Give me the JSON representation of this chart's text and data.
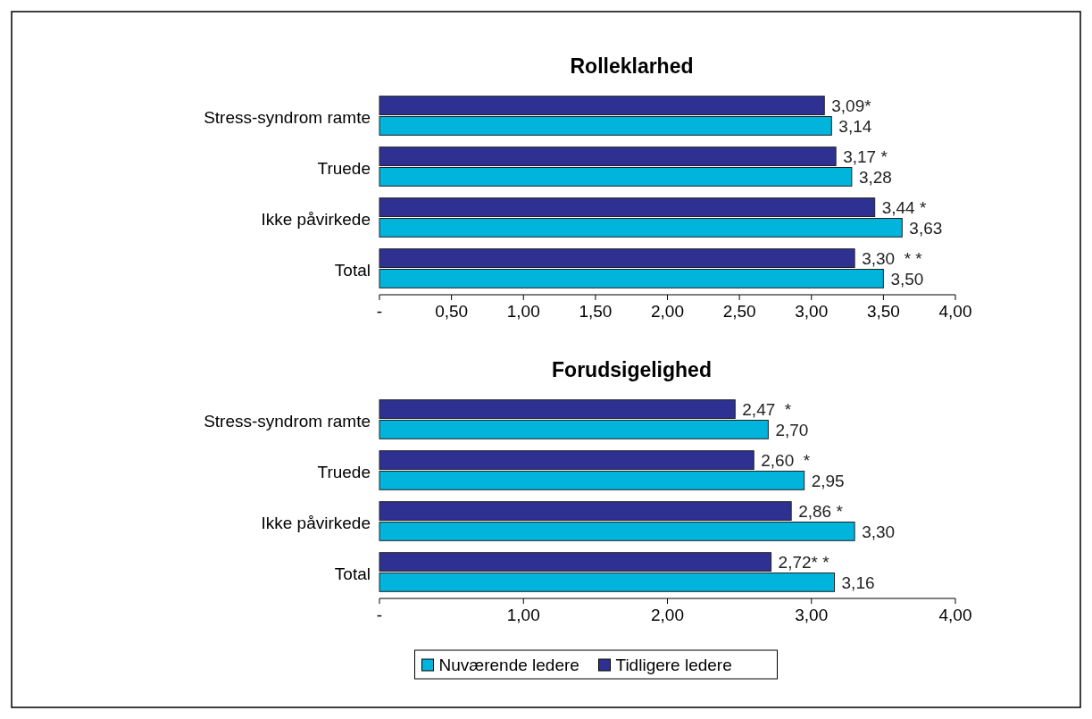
{
  "chart_data": [
    {
      "type": "bar",
      "orientation": "horizontal",
      "title": "Rolleklarhed",
      "categories": [
        "Stress-syndrom ramte",
        "Truede",
        "Ikke påvirkede",
        "Total"
      ],
      "xlim": [
        0,
        4
      ],
      "xticks": [
        {
          "value": 0,
          "label": "-"
        },
        {
          "value": 0.5,
          "label": "0,50"
        },
        {
          "value": 1,
          "label": "1,00"
        },
        {
          "value": 1.5,
          "label": "1,50"
        },
        {
          "value": 2,
          "label": "2,00"
        },
        {
          "value": 2.5,
          "label": "2,50"
        },
        {
          "value": 3,
          "label": "3,00"
        },
        {
          "value": 3.5,
          "label": "3,50"
        },
        {
          "value": 4,
          "label": "4,00"
        }
      ],
      "series": [
        {
          "color": "#00b4dc",
          "values": [
            3.14,
            3.28,
            3.63,
            3.5
          ],
          "value_labels": [
            "3,14",
            "3,28",
            "3,63",
            "3,50"
          ]
        },
        {
          "color": "#2e3192",
          "values": [
            3.09,
            3.17,
            3.44,
            3.3
          ],
          "value_labels": [
            "3,09*",
            "3,17 *",
            "3,44 *",
            "3,30  * *"
          ]
        }
      ],
      "legend": false
    },
    {
      "type": "bar",
      "orientation": "horizontal",
      "title": "Forudsigelighed",
      "categories": [
        "Stress-syndrom ramte",
        "Truede",
        "Ikke påvirkede",
        "Total"
      ],
      "xlim": [
        0,
        4
      ],
      "xticks": [
        {
          "value": 0,
          "label": "-"
        },
        {
          "value": 1,
          "label": "1,00"
        },
        {
          "value": 2,
          "label": "2,00"
        },
        {
          "value": 3,
          "label": "3,00"
        },
        {
          "value": 4,
          "label": "4,00"
        }
      ],
      "series": [
        {
          "name": "Nuværende ledere",
          "color": "#00b4dc",
          "values": [
            2.7,
            2.95,
            3.3,
            3.16
          ],
          "value_labels": [
            "2,70",
            "2,95",
            "3,30",
            "3,16"
          ]
        },
        {
          "name": "Tidligere ledere",
          "color": "#2e3192",
          "values": [
            2.47,
            2.6,
            2.86,
            2.72
          ],
          "value_labels": [
            "2,47  *",
            "2,60  *",
            "2,86 *",
            "2,72* *"
          ]
        }
      ],
      "legend": "bottom"
    }
  ]
}
